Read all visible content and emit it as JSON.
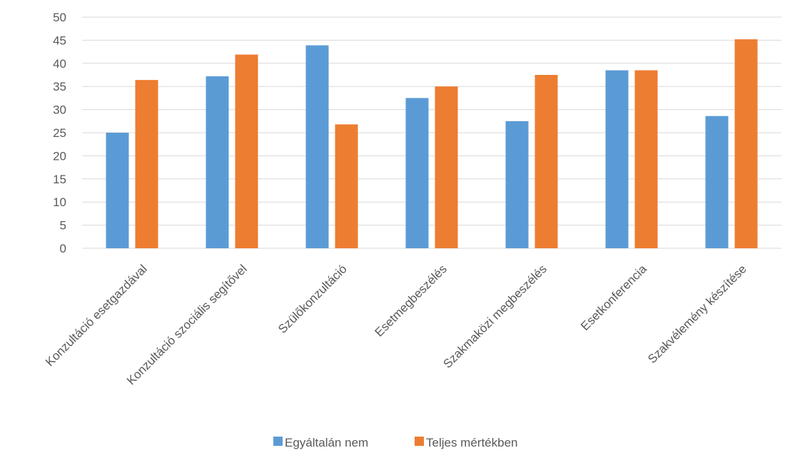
{
  "chart_data": {
    "type": "bar",
    "categories": [
      "Konzultáció esetgazdával",
      "Konzultáció szociális segítővel",
      "Szülőkonzultáció",
      "Esetmegbeszélés",
      "Szakmaközi megbeszélés",
      "Esetkonferencia",
      "Szakvélemény készítése"
    ],
    "series": [
      {
        "name": "Egyáltalán nem",
        "color": "#5B9BD5",
        "values": [
          25.0,
          37.2,
          43.9,
          32.5,
          27.5,
          38.5,
          28.6
        ]
      },
      {
        "name": "Teljes mértékben",
        "color": "#ED7D31",
        "values": [
          36.4,
          41.9,
          26.8,
          35.0,
          37.5,
          38.5,
          45.2
        ]
      }
    ],
    "yticks": [
      "0",
      "5",
      "10",
      "15",
      "20",
      "25",
      "30",
      "35",
      "40",
      "45",
      "50"
    ],
    "ylim": [
      0,
      50
    ],
    "title": "",
    "xlabel": "",
    "ylabel": "",
    "grid": true,
    "legend_position": "bottom"
  }
}
